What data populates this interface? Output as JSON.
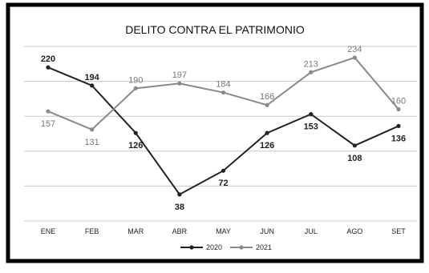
{
  "chart_data": {
    "type": "line",
    "title": "DELITO CONTRA EL PATRIMONIO",
    "categories": [
      "ENE",
      "FEB",
      "MAR",
      "ABR",
      "MAY",
      "JUN",
      "JUL",
      "AGO",
      "SET"
    ],
    "series": [
      {
        "name": "2020",
        "values": [
          220,
          194,
          126,
          38,
          72,
          126,
          153,
          108,
          136
        ],
        "color": "#222222"
      },
      {
        "name": "2021",
        "values": [
          157,
          131,
          190,
          197,
          184,
          166,
          213,
          234,
          160
        ],
        "color": "#8a8a8a"
      }
    ],
    "ylim": [
      0,
      250
    ],
    "grid": true,
    "legend": "bottom"
  }
}
